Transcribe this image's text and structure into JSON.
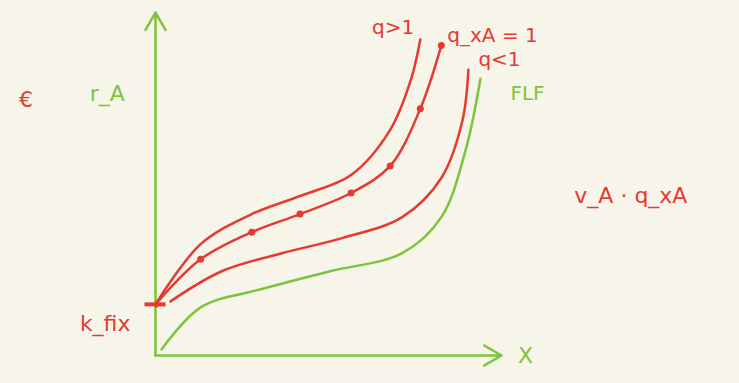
{
  "chart_data": {
    "type": "line",
    "tick_labels": false,
    "grid": false,
    "xlim": [
      0,
      11.5
    ],
    "ylim": [
      0,
      11.4
    ],
    "series": [
      {
        "name": "q>1",
        "color": "#e53a32",
        "x": [
          0,
          1.5,
          3.2,
          4.8,
          6.5,
          7.8,
          8.5,
          8.8
        ],
        "values": [
          1.7,
          3.7,
          4.7,
          5.3,
          6,
          7.5,
          9.2,
          10.5
        ]
      },
      {
        "name": "q_xA = 1",
        "color": "#e53a32",
        "marker": "dot",
        "x": [
          0,
          1.5,
          3.2,
          4.8,
          6.5,
          7.8,
          8.8,
          9.5
        ],
        "values": [
          1.7,
          3.2,
          4.1,
          4.7,
          5.4,
          6.3,
          8.2,
          10.3
        ]
      },
      {
        "name": "q<1",
        "color": "#e53a32",
        "x": [
          0.5,
          2.2,
          4.2,
          6.2,
          8.2,
          9.5,
          10.2,
          10.4
        ],
        "values": [
          1.8,
          2.8,
          3.4,
          3.9,
          4.6,
          5.9,
          7.8,
          9.5
        ]
      },
      {
        "name": "FLF",
        "color": "#7ec33d",
        "x": [
          0.2,
          1.5,
          3.5,
          5.8,
          8.2,
          9.5,
          10.3,
          10.8
        ],
        "values": [
          0.2,
          1.6,
          2.2,
          2.8,
          3.4,
          4.6,
          6.8,
          9.2
        ]
      }
    ],
    "fixed_cost": {
      "label": "k_fix",
      "value": 1.7,
      "color": "#e53a32"
    },
    "annotations": [
      {
        "text": "€",
        "x": -4.3,
        "y": 8.5,
        "color": "#e53a32"
      },
      {
        "text": "r_A",
        "x": -1.6,
        "y": 8.7,
        "color": "#7ec33d"
      },
      {
        "text": "X",
        "x": 12.3,
        "y": 0,
        "color": "#7ec33d"
      },
      {
        "text": "v_A · q_xA",
        "x": 15.8,
        "y": 5.3,
        "color": "#e53a32"
      }
    ]
  }
}
